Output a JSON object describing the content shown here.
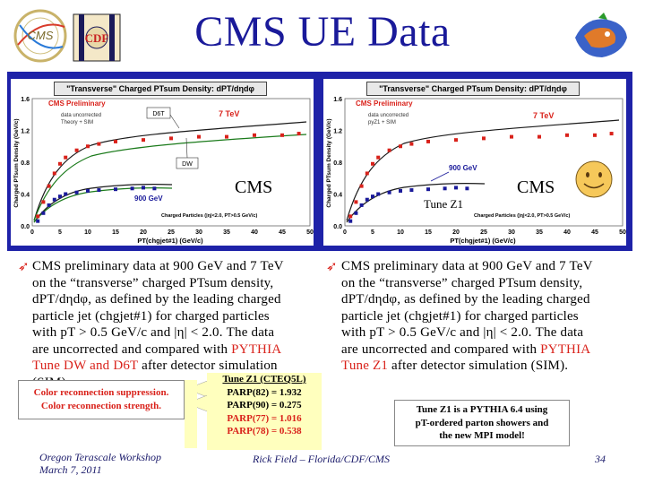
{
  "header": {
    "title": "CMS UE Data",
    "cms_logo_text": "CMS",
    "cdf_logo_text": "CDF"
  },
  "plot_left": {
    "title": "\"Transverse\" Charged PTsum Density: dPT/dηdφ",
    "inner_title": "CMS Preliminary",
    "inner_sub1": "data uncorrected",
    "inner_sub2": "Theory + SIM",
    "d6t_label": "D6T",
    "dw_label": "DW",
    "label_7tev": "7 TeV",
    "label_900": "900 GeV",
    "ylabel": "Charged PTsum Density (GeV/c)",
    "xlabel": "PT(chgjet#1) (GeV/c)",
    "cuts": "Charged Particles (|η|<2.0, PT>0.5 GeV/c)",
    "cms_tag": "CMS"
  },
  "plot_right": {
    "title": "\"Transverse\" Charged PTsum Density: dPT/dηdφ",
    "inner_title": "CMS Preliminary",
    "inner_sub1": "data uncorrected",
    "inner_sub2": "pyZ1 + SIM",
    "label_7tev": "7 TeV",
    "label_900": "900 GeV",
    "ylabel": "Charged PTsum Density (GeV/c)",
    "xlabel": "PT(chgjet#1) (GeV/c)",
    "cuts": "Charged Particles (|η|<2.0, PT>0.5 GeV/c)",
    "cms_tag": "CMS",
    "tune_tag": "Tune Z1"
  },
  "chart_data": [
    {
      "type": "scatter",
      "xlabel": "PT(chgjet#1) (GeV/c)",
      "ylabel": "Charged PTsum Density (GeV/c)",
      "xlim": [
        0,
        50
      ],
      "ylim": [
        0.0,
        1.6
      ],
      "x_ticks": [
        "0",
        "5",
        "10",
        "15",
        "20",
        "25",
        "30",
        "35",
        "40",
        "45",
        "50"
      ],
      "y_ticks": [
        "0.0",
        "0.4",
        "0.8",
        "1.2",
        "1.6"
      ],
      "series": [
        {
          "name": "7 TeV",
          "x": [
            1,
            2,
            3,
            4,
            5,
            6,
            8,
            10,
            12,
            15,
            20,
            25,
            30,
            35,
            40,
            45,
            48
          ],
          "y": [
            0.12,
            0.3,
            0.5,
            0.66,
            0.78,
            0.86,
            0.95,
            1.0,
            1.03,
            1.06,
            1.08,
            1.1,
            1.12,
            1.12,
            1.14,
            1.14,
            1.16
          ]
        },
        {
          "name": "900 GeV",
          "x": [
            1,
            2,
            3,
            4,
            5,
            6,
            8,
            10,
            12,
            15,
            18,
            20,
            22
          ],
          "y": [
            0.06,
            0.16,
            0.26,
            0.33,
            0.37,
            0.4,
            0.42,
            0.44,
            0.45,
            0.46,
            0.47,
            0.48,
            0.47
          ]
        }
      ]
    },
    {
      "type": "scatter",
      "xlabel": "PT(chgjet#1) (GeV/c)",
      "ylabel": "Charged PTsum Density (GeV/c)",
      "xlim": [
        0,
        50
      ],
      "ylim": [
        0.0,
        1.6
      ],
      "x_ticks": [
        "0",
        "5",
        "10",
        "15",
        "20",
        "25",
        "30",
        "35",
        "40",
        "45",
        "50"
      ],
      "y_ticks": [
        "0.0",
        "0.4",
        "0.8",
        "1.2",
        "1.6"
      ],
      "series": [
        {
          "name": "7 TeV",
          "x": [
            1,
            2,
            3,
            4,
            5,
            6,
            8,
            10,
            12,
            15,
            20,
            25,
            30,
            35,
            40,
            45,
            48
          ],
          "y": [
            0.12,
            0.3,
            0.5,
            0.66,
            0.78,
            0.86,
            0.95,
            1.0,
            1.03,
            1.06,
            1.08,
            1.1,
            1.12,
            1.12,
            1.14,
            1.14,
            1.16
          ]
        },
        {
          "name": "900 GeV",
          "x": [
            1,
            2,
            3,
            4,
            5,
            6,
            8,
            10,
            12,
            15,
            18,
            20,
            22
          ],
          "y": [
            0.06,
            0.16,
            0.26,
            0.33,
            0.37,
            0.4,
            0.42,
            0.44,
            0.45,
            0.46,
            0.47,
            0.48,
            0.47
          ]
        }
      ]
    }
  ],
  "bullet_left": {
    "line1": "CMS preliminary data at  900 GeV and 7 TeV",
    "line2": "on the “transverse” charged PTsum density,",
    "line3": "dPT/dηdφ, as defined by the leading charged",
    "line4": "particle jet (chgjet#1) for charged particles",
    "line5": "with pT > 0.5 GeV/c and |η| < 2.0.  The data",
    "line6a": "are uncorrected and compared with ",
    "line6b": "PYTHIA",
    "line7a": "Tune DW and D6T",
    "line7b": " after detector simulation",
    "line8": "(SIM)."
  },
  "bullet_right": {
    "line1": "CMS preliminary data at  900 GeV and 7 TeV",
    "line2": "on the “transverse” charged PTsum density,",
    "line3": "dPT/dηdφ, as defined by the leading charged",
    "line4": "particle jet (chgjet#1) for charged particles",
    "line5": "with pT > 0.5 GeV/c and |η| < 2.0.  The data",
    "line6a": "are uncorrected and compared with ",
    "line6b": "PYTHIA",
    "line7a": "Tune Z1",
    "line7b": " after detector simulation (SIM)."
  },
  "color_box": {
    "line1": "Color reconnection suppression.",
    "line2": "Color reconnection strength."
  },
  "tune_box": {
    "title": "Tune Z1 (CTEQ5L)",
    "l1": "PARP(82) = 1.932",
    "l2": "PARP(90) = 0.275",
    "l3": "PARP(77) = 1.016",
    "l4": "PARP(78) = 0.538"
  },
  "tune_note": {
    "l1": "Tune Z1 is a PYTHIA 6.4 using",
    "l2": "pT-ordered parton showers and",
    "l3": "the new MPI model!"
  },
  "footer": {
    "left1": "Oregon Terascale Workshop",
    "left2": "March 7, 2011",
    "mid": "Rick Field – Florida/CDF/CMS",
    "page": "34"
  },
  "colors": {
    "title_blue": "#1a1a9a",
    "panel_blue": "#1e22a8",
    "accent_red": "#d9221b",
    "tune_yellow": "#ffffbe"
  }
}
